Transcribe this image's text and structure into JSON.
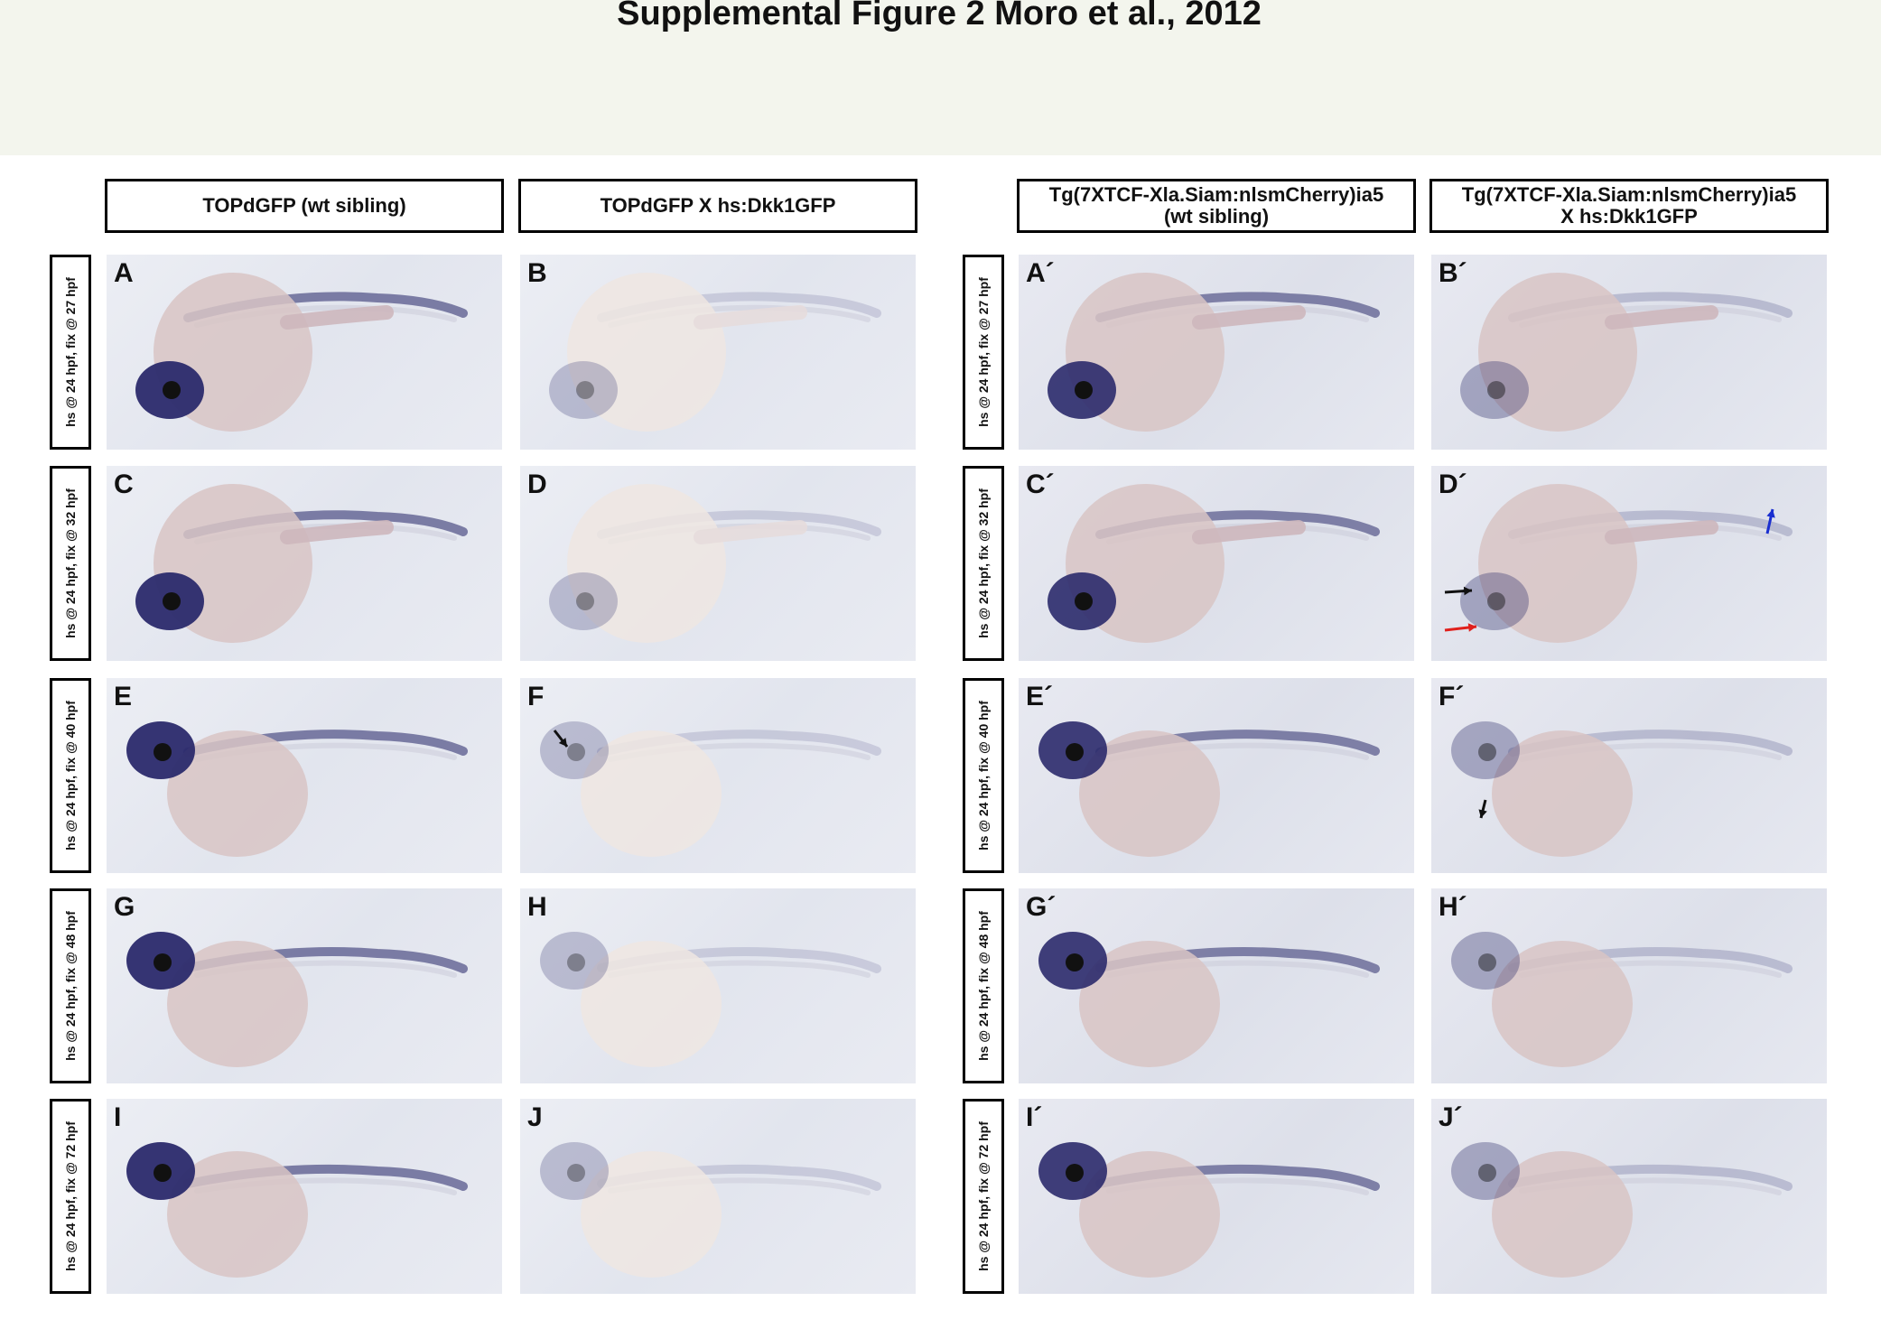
{
  "title": "Supplemental Figure 2 Moro et al., 2012",
  "columns": [
    "TOPdGFP (wt sibling)",
    "TOPdGFP X hs:Dkk1GFP",
    "Tg(7XTCF-Xla.Siam:nlsmCherry)ia5\n(wt sibling)",
    "Tg(7XTCF-Xla.Siam:nlsmCherry)ia5\nX hs:Dkk1GFP"
  ],
  "rows": [
    {
      "label": "hs @ 24 hpf, fix @ 27 hpf",
      "panels": [
        "A",
        "B",
        "A´",
        "B´"
      ]
    },
    {
      "label": "hs @ 24 hpf, fix @ 32 hpf",
      "panels": [
        "C",
        "D",
        "C´",
        "D´"
      ]
    },
    {
      "label": "hs @ 24 hpf, fix @ 40 hpf",
      "panels": [
        "E",
        "F",
        "E´",
        "F´"
      ]
    },
    {
      "label": "hs @ 24 hpf, fix @ 48 hpf",
      "panels": [
        "G",
        "H",
        "G´",
        "H´"
      ]
    },
    {
      "label": "hs @ 24 hpf, fix @ 72 hpf",
      "panels": [
        "I",
        "J",
        "I´",
        "J´"
      ]
    }
  ],
  "annotations": {
    "D´": [
      "black-arrow",
      "red-arrow",
      "blue-arrow"
    ],
    "F": [
      "black-arrow"
    ],
    "F´": [
      "black-arrowhead"
    ]
  },
  "colors": {
    "stain": "#2b2a6b",
    "yolk": "#d8c4c4",
    "red_arrow": "#e0201c",
    "blue_arrow": "#1a2fd0"
  }
}
